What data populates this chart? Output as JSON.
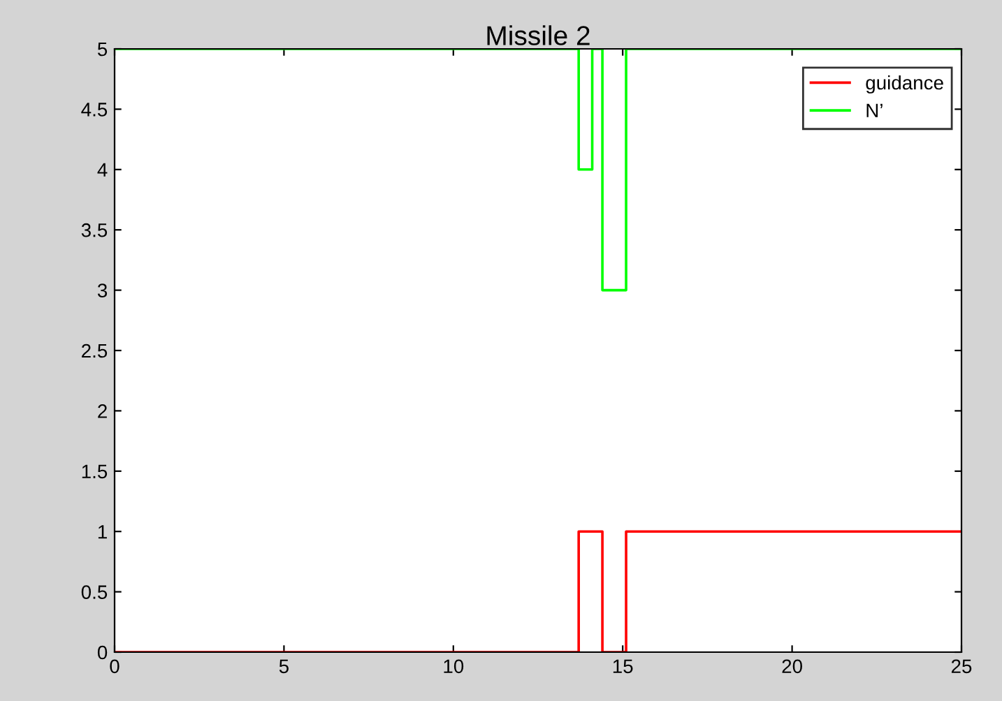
{
  "chart_data": {
    "type": "step",
    "title": "Missile 2",
    "series": [
      {
        "name": "guidance",
        "color": "#ff0000",
        "x": [
          0,
          13.7,
          14.4,
          15.1,
          25
        ],
        "values": [
          0,
          1,
          0,
          1,
          1
        ]
      },
      {
        "name": "N’",
        "color": "#00ff00",
        "x": [
          0,
          13.7,
          14.1,
          14.4,
          15.1,
          25
        ],
        "values": [
          5,
          4,
          5,
          3,
          5,
          5
        ]
      }
    ],
    "xlim": [
      0,
      25
    ],
    "xticks": [
      0,
      5,
      10,
      15,
      20,
      25
    ],
    "ylim": [
      0,
      5
    ],
    "yticks": [
      0,
      0.5,
      1,
      1.5,
      2,
      2.5,
      3,
      3.5,
      4,
      4.5,
      5
    ],
    "grid": false,
    "legend": "top right",
    "marker": "none",
    "line_style": "solid"
  }
}
